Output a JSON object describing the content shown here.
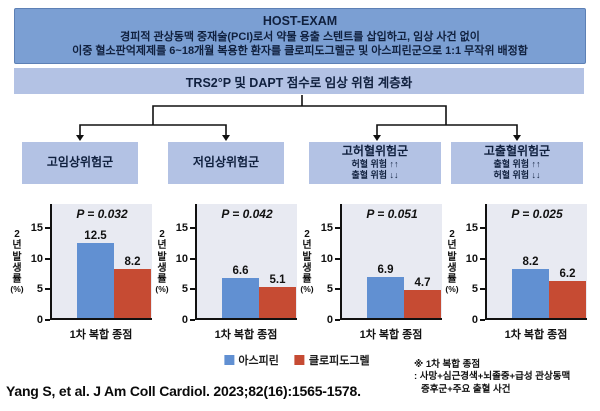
{
  "header": {
    "title": "HOST-EXAM",
    "desc_line1": "경피적 관상동맥 중재술(PCI)로서 약물 용출 스텐트를 삽입하고, 임상 사건 없이",
    "desc_line2": "이중 혈소판억제제를 6~18개월 복용한 환자를 클로피도그렐군 및 아스피린군으로 1:1 무작위 배정함"
  },
  "stratification": {
    "label": "TRS2°P 및 DAPT 점수로 임상 위험 계층화"
  },
  "groups": [
    {
      "title": "고임상위험군",
      "lines": []
    },
    {
      "title": "저임상위험군",
      "lines": []
    },
    {
      "title": "고허혈위험군",
      "lines": [
        "허혈 위험 ↑↑",
        "출혈 위험 ↓↓"
      ]
    },
    {
      "title": "고출혈위험군",
      "lines": [
        "출혈 위험 ↑↑",
        "허혈 위험 ↓↓"
      ]
    }
  ],
  "chart_data": {
    "type": "bar",
    "categories": [
      "아스피린",
      "클로피도그렐"
    ],
    "bar_colors": [
      "#6190d2",
      "#c64b33"
    ],
    "ylabel": "2년 발생률 (%)",
    "ylabel_chars": [
      "2",
      "년",
      "발",
      "생",
      "률",
      "(%)"
    ],
    "xlabel": "1차 복합 종점",
    "yticks": [
      0,
      5,
      10,
      15
    ],
    "ylim": [
      0,
      19
    ],
    "grid": false,
    "legend_position": "bottom",
    "charts": [
      {
        "group": "고임상위험군",
        "p_label": "P = 0.032",
        "values": [
          12.5,
          8.2
        ]
      },
      {
        "group": "저임상위험군",
        "p_label": "P = 0.042",
        "values": [
          6.6,
          5.1
        ]
      },
      {
        "group": "고허혈위험군",
        "p_label": "P = 0.051",
        "values": [
          6.9,
          4.7
        ]
      },
      {
        "group": "고출혈위험군",
        "p_label": "P = 0.025",
        "values": [
          8.2,
          6.2
        ]
      }
    ]
  },
  "legend": [
    {
      "label": "아스피린",
      "color": "#6190d2"
    },
    {
      "label": "클로피도그렐",
      "color": "#c64b33"
    }
  ],
  "footnote": {
    "line1": "※ 1차 복합 종점",
    "line2": ": 사망+심근경색+뇌졸중+급성 관상동맥",
    "line3": "증후군+주요 출혈 사건"
  },
  "citation": "Yang S, et al. J Am Coll Cardiol. 2023;82(16):1565-1578.",
  "theme": {
    "header_bg": "#7b9fd3",
    "box_bg": "#b3c2e4",
    "panel_bg": "#e8eaf2"
  }
}
